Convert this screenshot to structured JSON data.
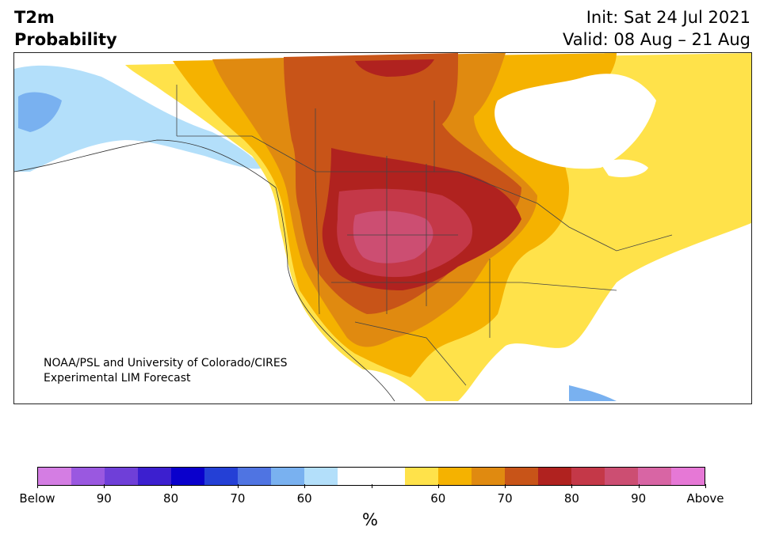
{
  "title": {
    "line1": "T2m",
    "line2": "Probability"
  },
  "init": {
    "line1": "Init: Sat 24 Jul 2021",
    "line2": "Valid: 08 Aug – 21 Aug"
  },
  "credit": {
    "line1": "NOAA/PSL and University of Colorado/CIRES",
    "line2": "Experimental LIM Forecast"
  },
  "colorbar": {
    "unit": "%",
    "colors": [
      "#d47de3",
      "#9a58e0",
      "#6f3fd8",
      "#3c1fcf",
      "#0a00cc",
      "#2440d6",
      "#4f74e2",
      "#79b1f0",
      "#b3dffa",
      "#ffffff",
      "#ffffff",
      "#ffe24a",
      "#f5b200",
      "#e08a10",
      "#c85418",
      "#b0221f",
      "#c43848",
      "#cc4e72",
      "#d865a4",
      "#e678d6"
    ],
    "tick_labels": [
      "Below",
      "90",
      "80",
      "70",
      "60",
      "",
      "60",
      "70",
      "80",
      "90",
      "Above"
    ]
  },
  "map_legend": {
    "below_light": "#b3dffa",
    "below_mid": "#79b1f0",
    "above_yellow": "#ffe24a",
    "above_gold": "#f5b200",
    "above_orange": "#e08a10",
    "above_darkorange": "#c85418",
    "above_red": "#b0221f",
    "above_rose": "#c43848",
    "above_pink": "#cc4e72"
  }
}
